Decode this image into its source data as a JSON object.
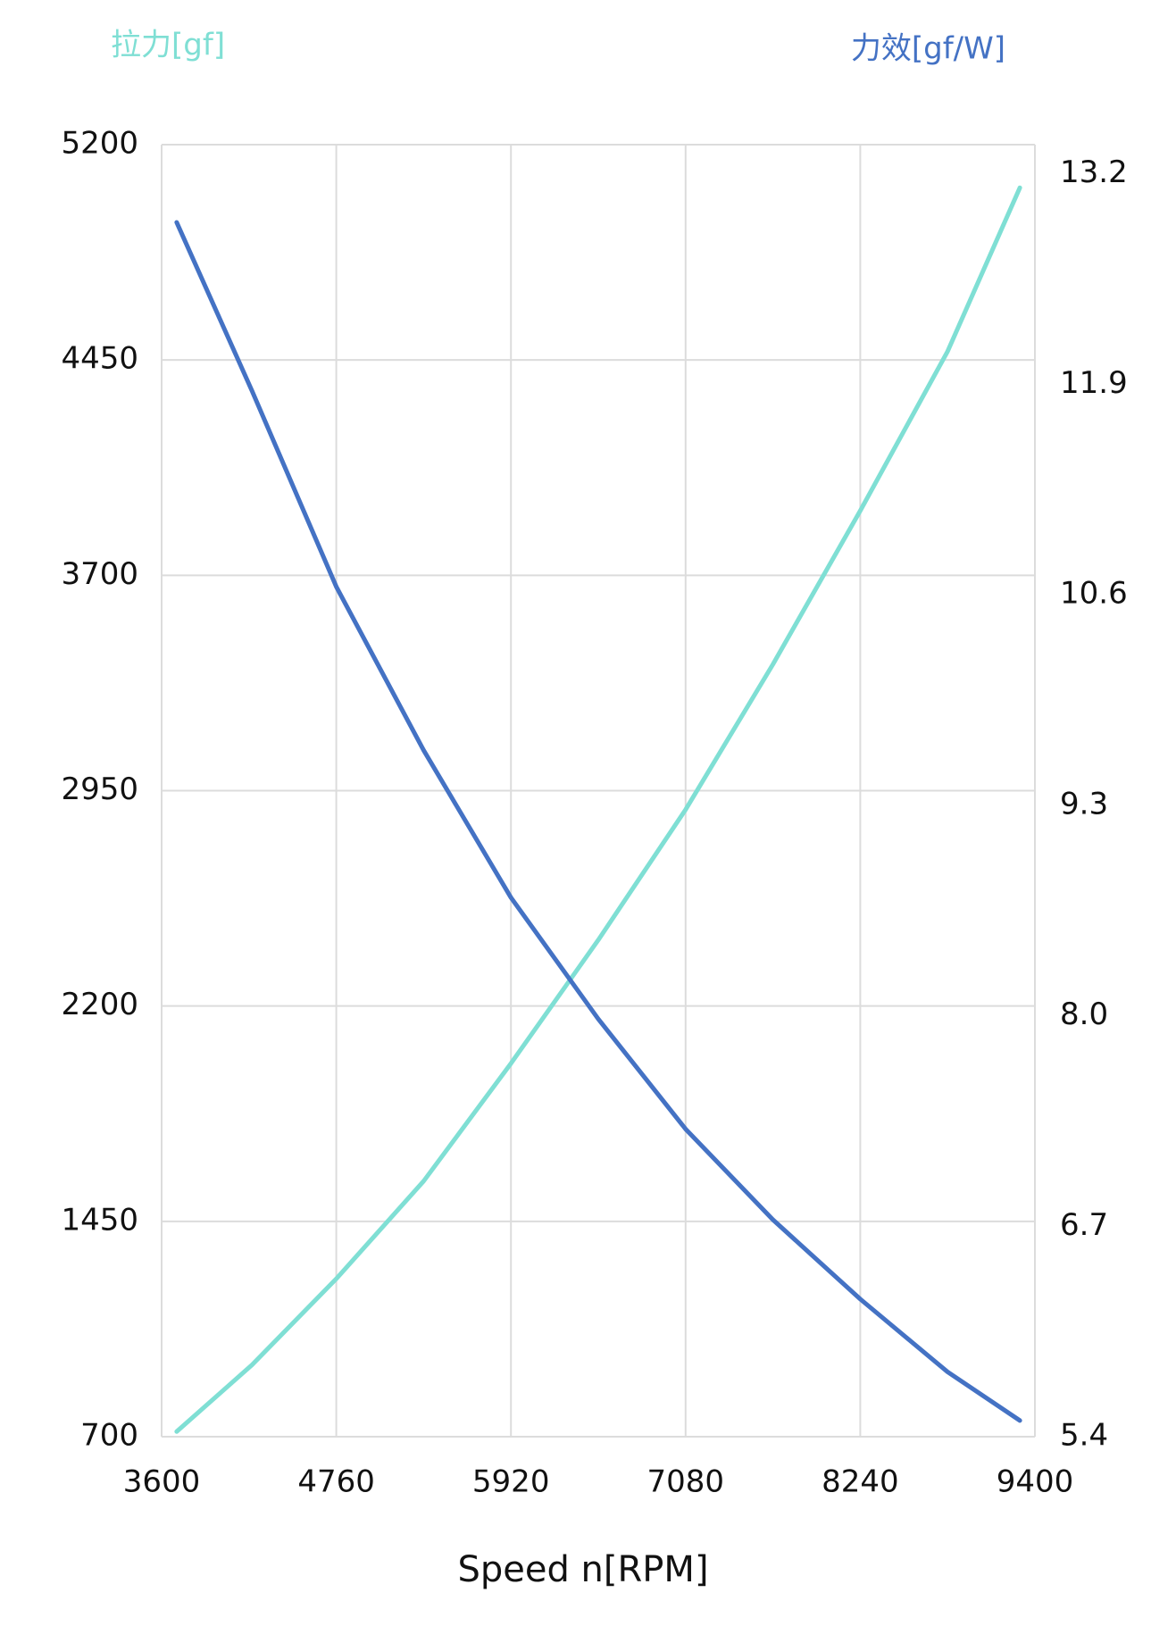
{
  "chart_data": {
    "type": "line",
    "y_title": "拉力[gf]",
    "y2_title": "力效[gf/W]",
    "x_title": "Speed n[RPM]",
    "x": [
      3700,
      4200,
      4760,
      5340,
      5920,
      6500,
      7080,
      7660,
      8240,
      8820,
      9300
    ],
    "series": [
      {
        "name": "拉力[gf]",
        "color": "#7fdfd4",
        "values": [
          718,
          950,
          1250,
          1590,
          2000,
          2430,
          2884,
          3390,
          3925,
          4480,
          5050
        ]
      },
      {
        "name": "力效[gf/W]",
        "color": "#4472c4",
        "axis": "y2",
        "values": [
          12.9,
          11.86,
          10.65,
          9.64,
          8.73,
          7.98,
          7.3,
          6.74,
          6.25,
          5.8,
          5.5
        ]
      }
    ],
    "xlim": [
      3600,
      9400
    ],
    "xticks": [
      3600,
      4760,
      5920,
      7080,
      8240,
      9400
    ],
    "ylim": [
      700,
      5200
    ],
    "yticks": [
      700,
      1450,
      2200,
      2950,
      3700,
      4450,
      5200
    ],
    "y2lim": [
      5.4,
      13.38
    ],
    "y2ticks": [
      5.4,
      6.7,
      {
        "value": 8,
        "label": "8.0"
      },
      9.3,
      10.6,
      11.9,
      13.2
    ],
    "grid": true
  }
}
